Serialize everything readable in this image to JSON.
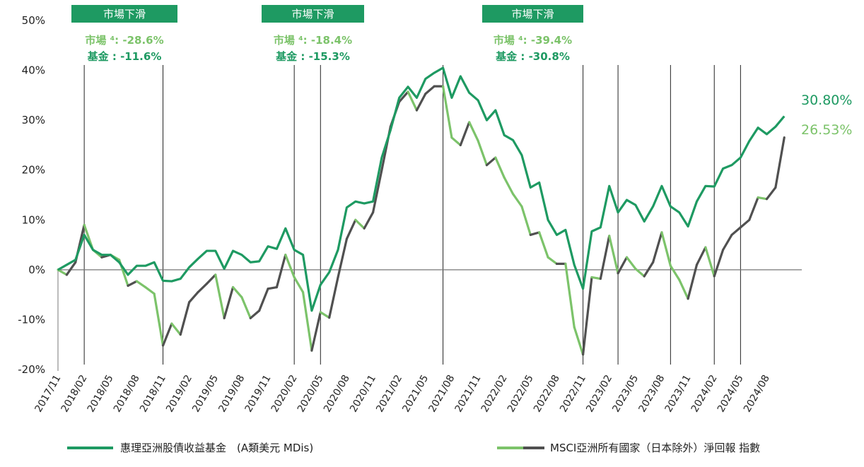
{
  "chart_data": {
    "type": "line",
    "ylim": [
      -20,
      50
    ],
    "yticks": [
      "50%",
      "40%",
      "30%",
      "20%",
      "10%",
      "0%",
      "-10%",
      "-20%"
    ],
    "ytick_values": [
      50,
      40,
      30,
      20,
      10,
      0,
      -10,
      -20
    ],
    "xtick_labels": [
      "2017/11",
      "2018/02",
      "2018/05",
      "2018/08",
      "2018/11",
      "2019/02",
      "2019/05",
      "2019/08",
      "2019/11",
      "2020/02",
      "2020/05",
      "2020/08",
      "2020/11",
      "2021/02",
      "2021/05",
      "2021/08",
      "2021/11",
      "2022/02",
      "2022/05",
      "2022/08",
      "2022/11",
      "2023/02",
      "2023/05",
      "2023/08",
      "2023/11",
      "2024/02",
      "2024/05",
      "2024/08"
    ],
    "x_months": 85,
    "colors": {
      "fund": "#1e9a62",
      "index_up": "#505050",
      "index_down": "#7cc36a",
      "axis": "#666666",
      "banner": "#1e9a62"
    },
    "series": [
      {
        "name": "惠理亞洲股債收益基金　(A類美元 MDis)",
        "color": "#1e9a62",
        "values": [
          0,
          1,
          2,
          7,
          4,
          3,
          3,
          1.5,
          -1,
          0.8,
          0.8,
          1.5,
          -2.2,
          -2.3,
          -1.8,
          0.5,
          2.2,
          3.8,
          3.8,
          0.2,
          3.8,
          3,
          1.5,
          1.7,
          4.7,
          4.2,
          8.3,
          4,
          3,
          -8.2,
          -3,
          -0.5,
          4,
          12.5,
          13.7,
          13.3,
          13.7,
          22.5,
          28,
          34.5,
          36.7,
          34.5,
          38.3,
          39.5,
          40.5,
          34.5,
          38.8,
          35.5,
          34,
          30,
          32,
          27,
          26,
          23,
          16.5,
          17.5,
          10,
          7,
          8,
          1,
          -3.8,
          7.7,
          8.5,
          16.8,
          11.5,
          14,
          13,
          9.7,
          12.7,
          16.8,
          12.7,
          11.5,
          8.7,
          13.7,
          16.8,
          16.7,
          20.3,
          21,
          22.5,
          25.8,
          28.5,
          27.2,
          28.7,
          30.8
        ]
      },
      {
        "name": "MSCI亞洲所有國家（日本除外）淨回報 指數",
        "color": "#505050",
        "values": [
          0,
          -1,
          1.5,
          9,
          4,
          2.5,
          3,
          2,
          -3.2,
          -2.3,
          -3.5,
          -4.8,
          -15.2,
          -10.8,
          -13,
          -6.5,
          -4.5,
          -2.8,
          -1,
          -9.7,
          -3.5,
          -5.5,
          -9.7,
          -8.2,
          -3.8,
          -3.5,
          3,
          -1.5,
          -4.5,
          -16.2,
          -8.5,
          -9.6,
          -1.5,
          6.2,
          10,
          8.3,
          11.5,
          20,
          28.7,
          33.7,
          35.7,
          32,
          35.3,
          36.8,
          36.8,
          26.5,
          25,
          29.6,
          25.9,
          21,
          22.5,
          18.5,
          15.2,
          12.7,
          7,
          7.5,
          2.5,
          1.2,
          1.2,
          -11.5,
          -17,
          -1.5,
          -1.8,
          6.8,
          -0.7,
          2.5,
          0.2,
          -1.3,
          1.5,
          7.5,
          0.8,
          -2,
          -5.8,
          1,
          4.5,
          -1.3,
          4,
          7,
          8.5,
          10,
          14.5,
          14.2,
          16.5,
          26.53
        ]
      }
    ],
    "end_labels": {
      "fund": "30.80%",
      "index": "26.53%"
    },
    "annotations": [
      {
        "banner": "市場下滑",
        "market_label": "市場 ⁴: ",
        "market_value": "-28.6%",
        "fund_label": "基金 : ",
        "fund_value": "-11.6%",
        "start": 3,
        "end": 12
      },
      {
        "banner": "市場下滑",
        "market_label": "市場 ⁴: ",
        "market_value": "-18.4%",
        "fund_label": "基金 : ",
        "fund_value": "-15.3%",
        "start": 27,
        "end": 30
      },
      {
        "banner": "市場下滑",
        "market_label": "市場 ⁴: ",
        "market_value": "-39.4%",
        "fund_label": "基金 : ",
        "fund_value": "-30.8%",
        "start": 44,
        "end": 60
      }
    ],
    "extra_vlines": [
      64,
      70,
      75,
      78
    ]
  },
  "legend": [
    {
      "label": "惠理亞洲股債收益基金　(A類美元 MDis)",
      "color": "#1e9a62"
    },
    {
      "label": "MSCI亞洲所有國家（日本除外）淨回報 指數",
      "color_up": "#505050",
      "color_down": "#7cc36a"
    }
  ]
}
